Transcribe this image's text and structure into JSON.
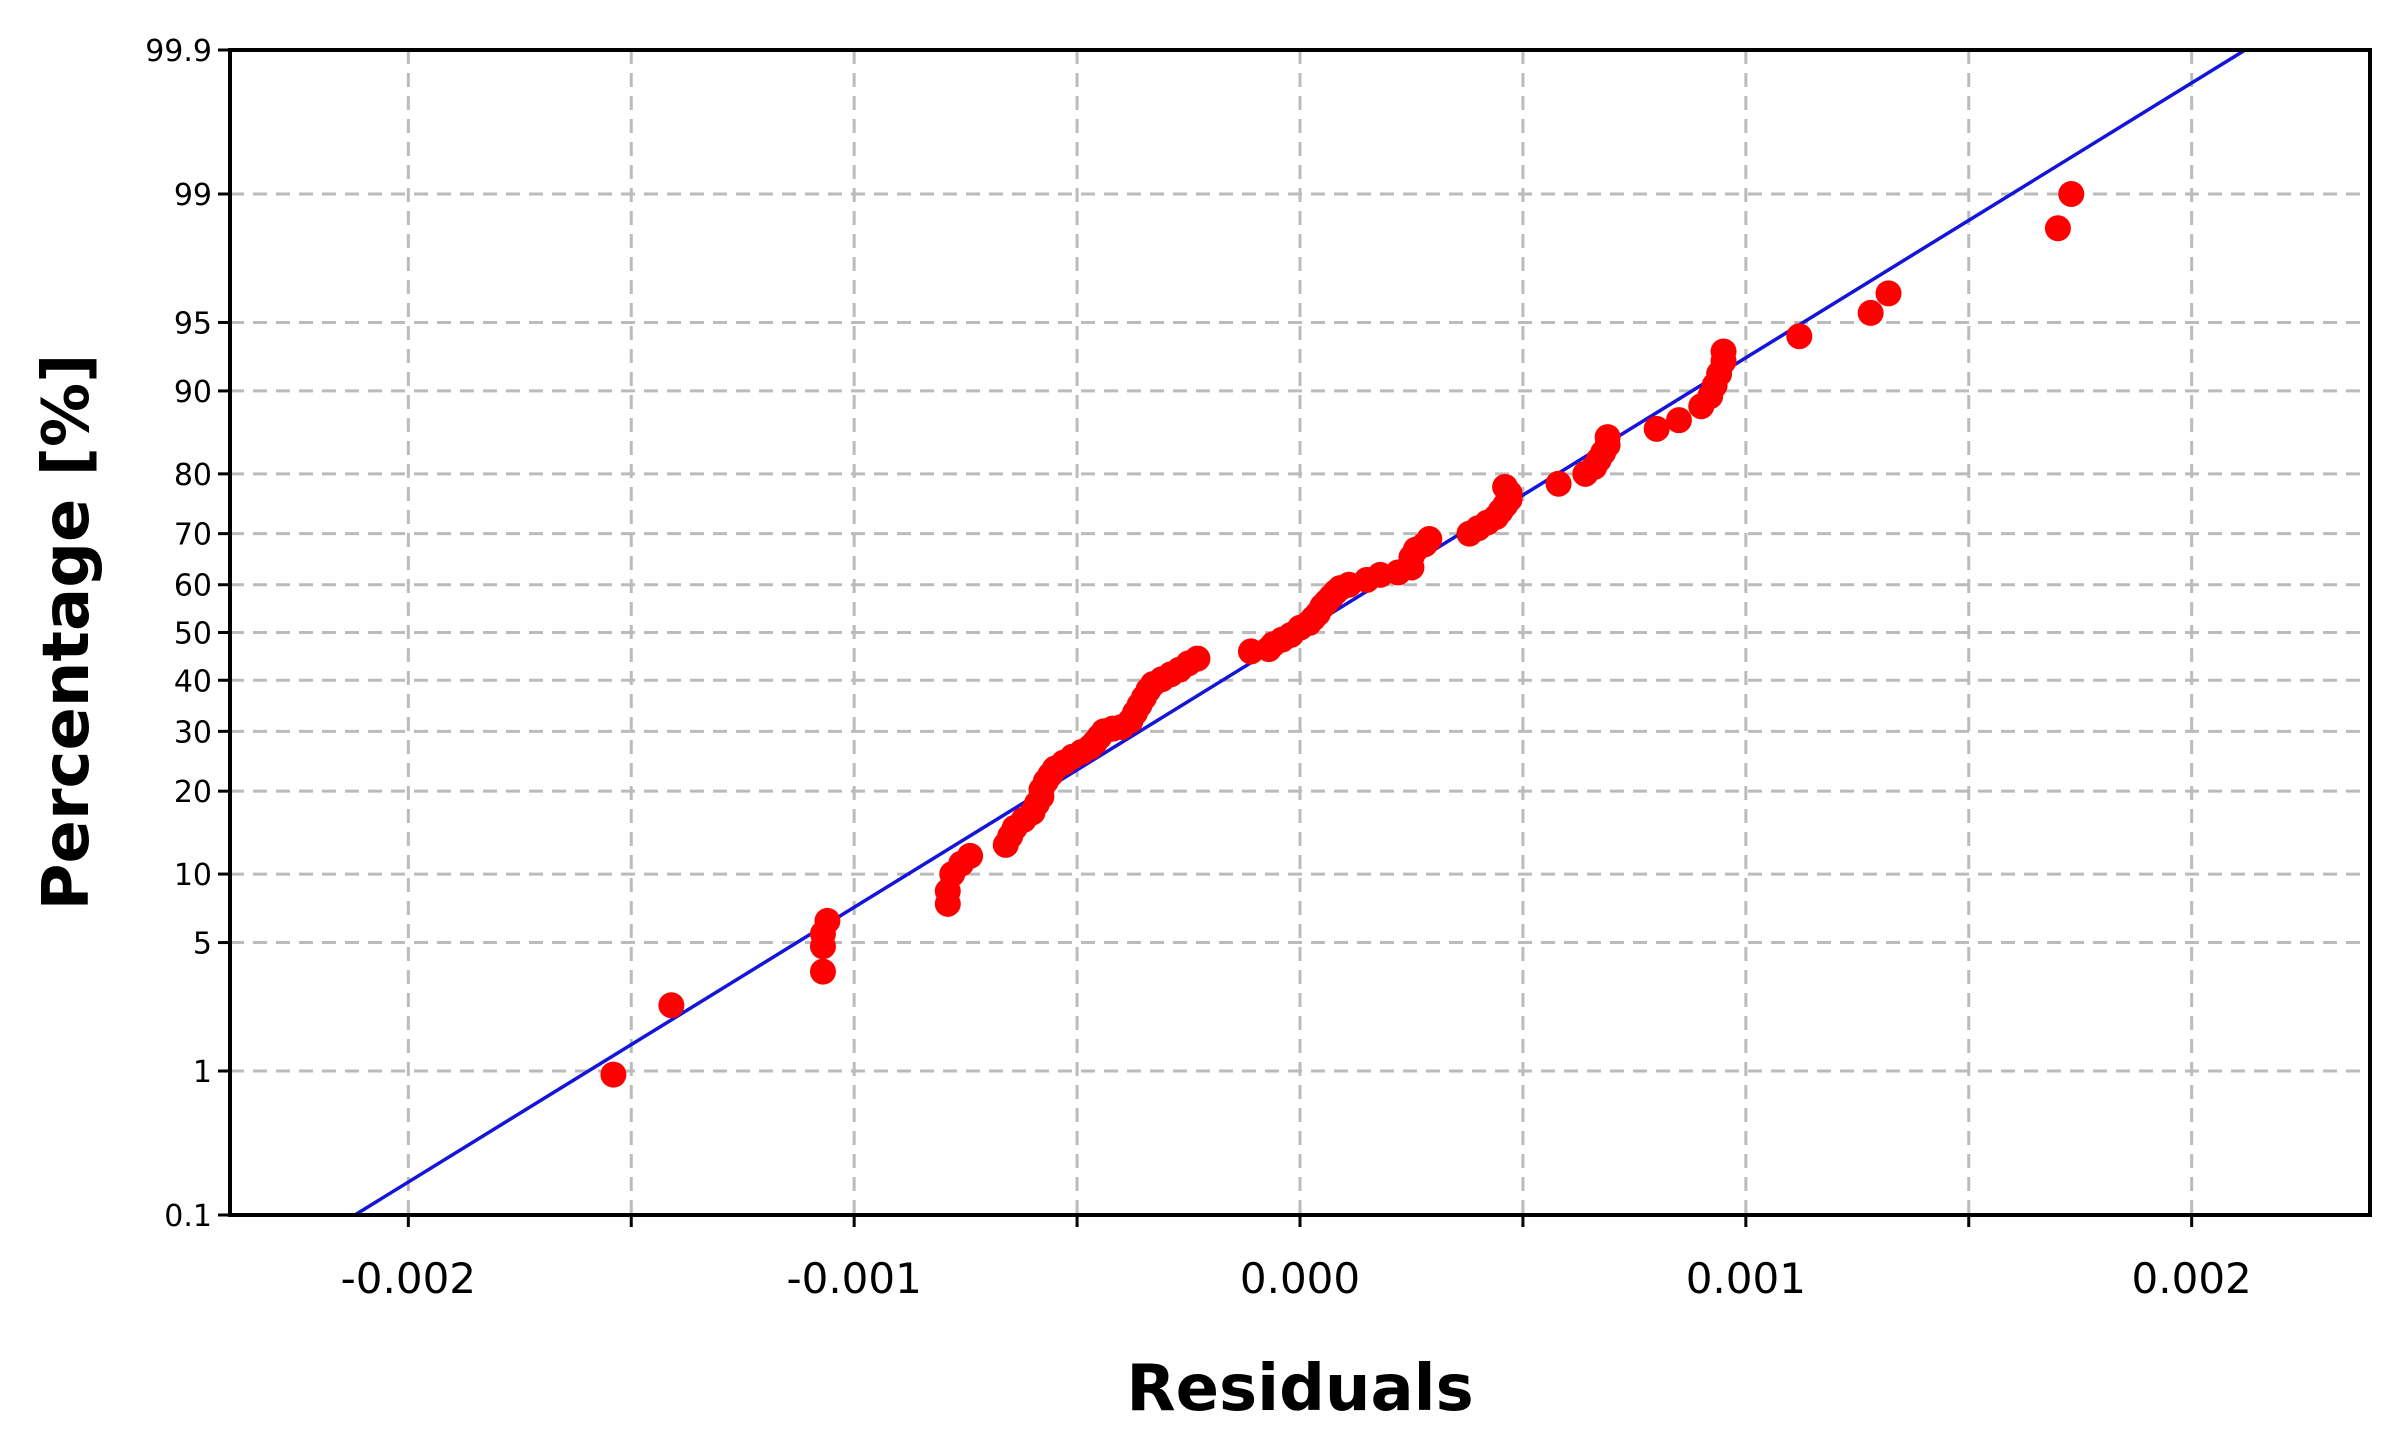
{
  "chart_data": {
    "type": "scatter",
    "title": "",
    "xlabel": "Residuals",
    "ylabel": "Percentage [%]",
    "y_scale": "normal-probability",
    "xlim": [
      -0.0024,
      0.0024
    ],
    "ylim": [
      0.1,
      99.9
    ],
    "grid": true,
    "x_ticks": [
      -0.002,
      -0.0015,
      -0.001,
      -0.0005,
      0.0,
      0.0005,
      0.001,
      0.0015,
      0.002
    ],
    "x_tick_labels": [
      "-0.002",
      "",
      "-0.001",
      "",
      "0.000",
      "",
      "0.001",
      "",
      "0.002"
    ],
    "y_ticks": [
      0.1,
      1,
      5,
      10,
      20,
      30,
      40,
      50,
      60,
      70,
      80,
      90,
      95,
      99,
      99.9
    ],
    "y_tick_labels": [
      "0.1",
      "1",
      "5",
      "10",
      "20",
      "30",
      "40",
      "50",
      "60",
      "70",
      "80",
      "90",
      "95",
      "99",
      "99.9"
    ],
    "colors": {
      "points": "#ff0000",
      "line": "#1515d8",
      "grid": "#bbbbbb",
      "axes": "#000000"
    },
    "fit_line": {
      "points": [
        [
          -0.00212,
          0.1
        ],
        [
          0.00212,
          99.9
        ]
      ]
    },
    "points": [
      [
        -0.00154,
        0.95
      ],
      [
        -0.00141,
        2.4
      ],
      [
        -0.00107,
        3.6
      ],
      [
        -0.00107,
        4.8
      ],
      [
        -0.00107,
        5.5
      ],
      [
        -0.00106,
        6.3
      ],
      [
        -0.00079,
        7.5
      ],
      [
        -0.00079,
        8.5
      ],
      [
        -0.00078,
        10.0
      ],
      [
        -0.00076,
        11.0
      ],
      [
        -0.00074,
        11.8
      ],
      [
        -0.00066,
        13.0
      ],
      [
        -0.00065,
        14.0
      ],
      [
        -0.00064,
        15.0
      ],
      [
        -0.00062,
        16.0
      ],
      [
        -0.0006,
        17.0
      ],
      [
        -0.00059,
        18.2
      ],
      [
        -0.00058,
        19.2
      ],
      [
        -0.00058,
        20.2
      ],
      [
        -0.00057,
        21.5
      ],
      [
        -0.00056,
        22.5
      ],
      [
        -0.00055,
        23.5
      ],
      [
        -0.00053,
        24.5
      ],
      [
        -0.00051,
        25.5
      ],
      [
        -0.00049,
        26.3
      ],
      [
        -0.00047,
        27.2
      ],
      [
        -0.00046,
        28.0
      ],
      [
        -0.00045,
        29.0
      ],
      [
        -0.00044,
        30.0
      ],
      [
        -0.00042,
        30.5
      ],
      [
        -0.0004,
        30.8
      ],
      [
        -0.00038,
        32.0
      ],
      [
        -0.00037,
        33.5
      ],
      [
        -0.00036,
        35.0
      ],
      [
        -0.00035,
        36.5
      ],
      [
        -0.00034,
        38.0
      ],
      [
        -0.00033,
        39.2
      ],
      [
        -0.00031,
        40.2
      ],
      [
        -0.00029,
        41.2
      ],
      [
        -0.00027,
        42.2
      ],
      [
        -0.00025,
        43.5
      ],
      [
        -0.00023,
        44.5
      ],
      [
        -0.00011,
        46.0
      ],
      [
        -7e-05,
        46.5
      ],
      [
        -6e-05,
        47.5
      ],
      [
        -4e-05,
        48.5
      ],
      [
        -2e-05,
        49.5
      ],
      [
        0.0,
        51.0
      ],
      [
        2e-05,
        52.0
      ],
      [
        3e-05,
        53.0
      ],
      [
        4e-05,
        54.0
      ],
      [
        5e-05,
        55.5
      ],
      [
        6e-05,
        56.5
      ],
      [
        7e-05,
        57.5
      ],
      [
        8e-05,
        58.5
      ],
      [
        9e-05,
        59.3
      ],
      [
        0.00011,
        60.0
      ],
      [
        0.00015,
        61.0
      ],
      [
        0.00018,
        62.0
      ],
      [
        0.00022,
        62.5
      ],
      [
        0.00025,
        63.5
      ],
      [
        0.00025,
        65.5
      ],
      [
        0.00026,
        67.0
      ],
      [
        0.00028,
        68.0
      ],
      [
        0.00029,
        69.0
      ],
      [
        0.00038,
        70.0
      ],
      [
        0.0004,
        71.0
      ],
      [
        0.00042,
        72.0
      ],
      [
        0.00044,
        73.0
      ],
      [
        0.00045,
        74.0
      ],
      [
        0.00046,
        75.0
      ],
      [
        0.00047,
        76.0
      ],
      [
        0.00047,
        77.0
      ],
      [
        0.00046,
        78.0
      ],
      [
        0.00058,
        78.5
      ],
      [
        0.00064,
        80.0
      ],
      [
        0.00066,
        81.0
      ],
      [
        0.00067,
        82.0
      ],
      [
        0.00068,
        83.0
      ],
      [
        0.00069,
        84.0
      ],
      [
        0.00069,
        85.0
      ],
      [
        0.0008,
        86.0
      ],
      [
        0.00085,
        87.0
      ],
      [
        0.0009,
        88.5
      ],
      [
        0.00092,
        89.5
      ],
      [
        0.00093,
        90.5
      ],
      [
        0.00094,
        91.5
      ],
      [
        0.00095,
        92.5
      ],
      [
        0.00095,
        93.2
      ],
      [
        0.00112,
        94.2
      ],
      [
        0.00128,
        95.5
      ],
      [
        0.00132,
        96.4
      ],
      [
        0.0017,
        98.4
      ],
      [
        0.00173,
        99.0
      ]
    ]
  }
}
